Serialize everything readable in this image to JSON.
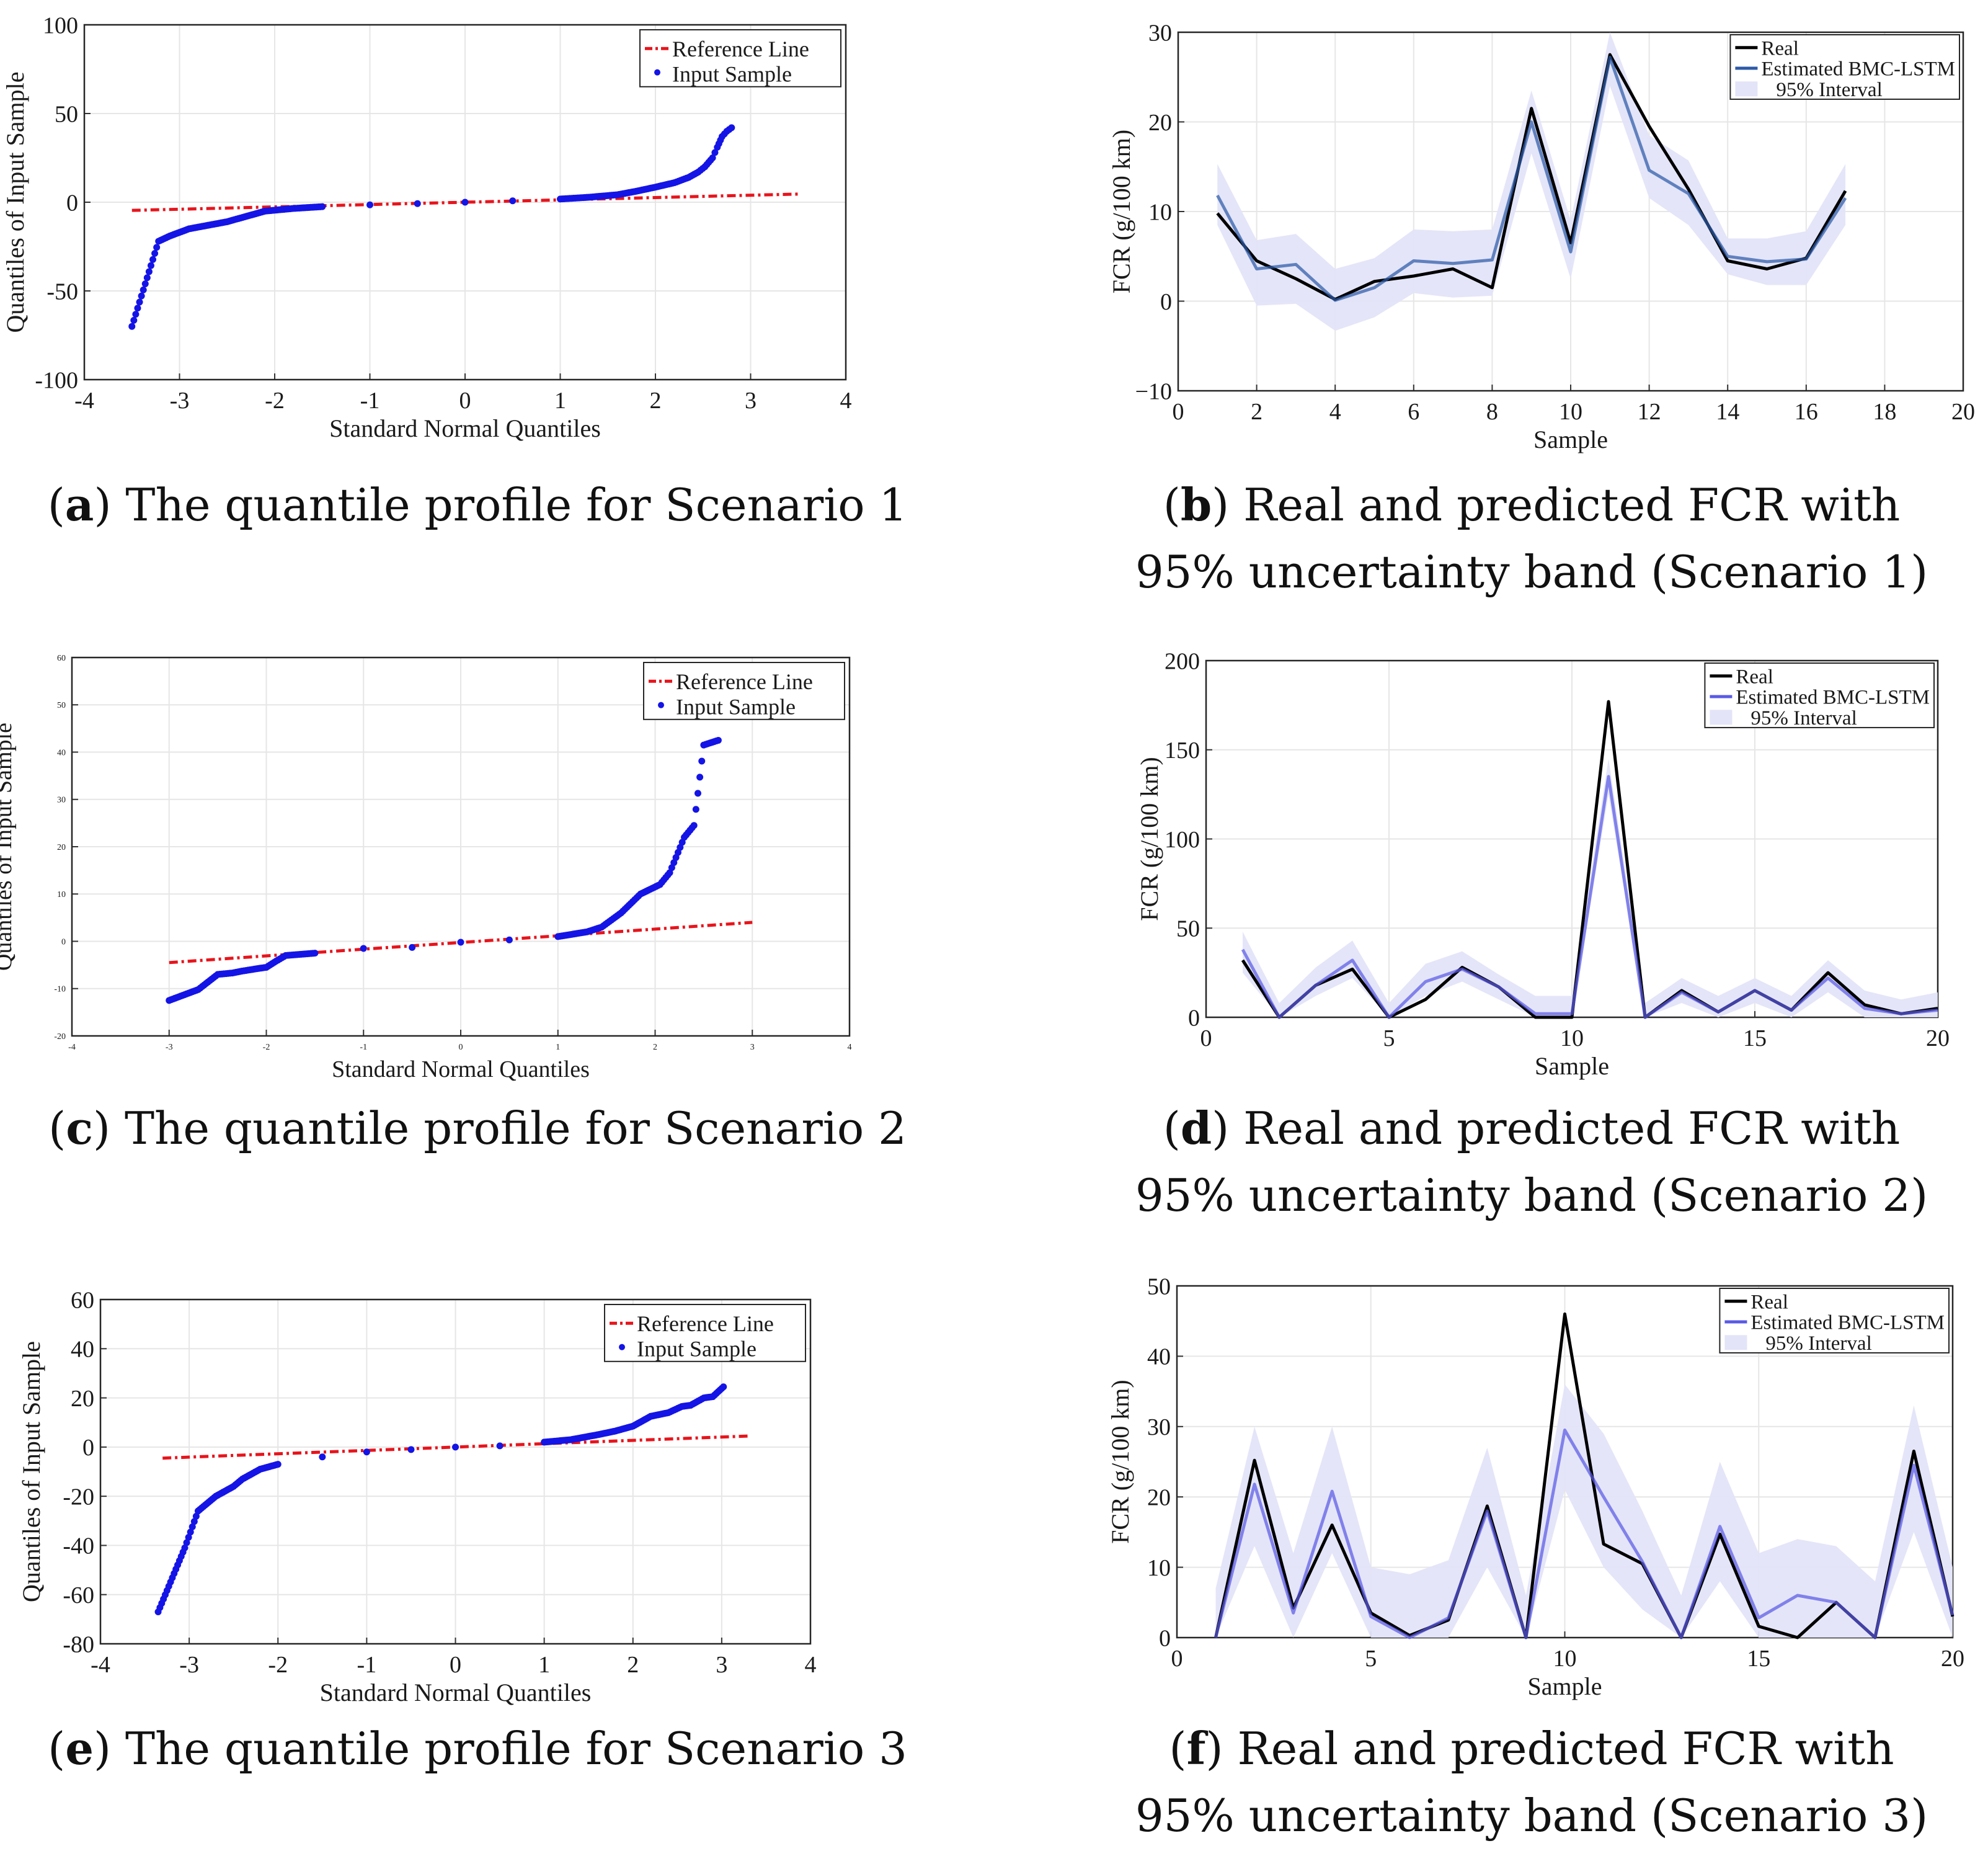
{
  "captions": {
    "a": {
      "letter": "a",
      "text": "The quantile profile for Scenario 1"
    },
    "b": {
      "letter": "b",
      "text": "Real and predicted FCR with 95% uncertainty band (Scenario 1)"
    },
    "c": {
      "letter": "c",
      "text": "The quantile profile for Scenario 2"
    },
    "d": {
      "letter": "d",
      "text": "Real and predicted FCR with 95% uncertainty band (Scenario 2)"
    },
    "e": {
      "letter": "e",
      "text": "The quantile profile for Scenario 3"
    },
    "f": {
      "letter": "f",
      "text": "Real and predicted FCR with 95% uncertainty band (Scenario 3)"
    }
  },
  "colors": {
    "reference": "#e8141c",
    "sample": "#1414e6",
    "real": "#000000",
    "estimated_b": "#2d5aa8",
    "estimated": "#5a5ae6",
    "band": "#e3e4f8",
    "grid": "#e6e6e6"
  },
  "chart_data": [
    {
      "id": "a",
      "type": "scatter",
      "xlabel": "Standard Normal Quantiles",
      "ylabel": "Quantiles of Input Sample",
      "xlim": [
        -4,
        4
      ],
      "ylim": [
        -100,
        100
      ],
      "xticks": [
        -4,
        -3,
        -2,
        -1,
        0,
        1,
        2,
        3,
        4
      ],
      "xtick_labels": [
        "-4",
        "-3",
        "-2",
        "-1",
        "0",
        "1",
        "2",
        "3",
        "4"
      ],
      "yticks": [
        -100,
        -50,
        0,
        50,
        100
      ],
      "ytick_labels": [
        "-100",
        "-50",
        "0",
        "50",
        "100"
      ],
      "legend": {
        "entries": [
          "Reference Line",
          "Input Sample"
        ],
        "position": "top-right"
      },
      "reference_line": {
        "x": [
          -3.5,
          3.5
        ],
        "y": [
          -4.6,
          4.6
        ]
      },
      "sample_curve": {
        "x": [
          -3.5,
          -3.22,
          -3.1,
          -3.0,
          -2.9,
          -2.8,
          -2.6,
          -2.5,
          -2.3,
          -2.1,
          -1.8,
          -1.5,
          -1.0,
          -0.5,
          0.0,
          0.5,
          1.0,
          1.3,
          1.6,
          1.8,
          2.0,
          2.2,
          2.35,
          2.45,
          2.52,
          2.6,
          2.65,
          2.7,
          2.75,
          2.8
        ],
        "y": [
          -70,
          -22,
          -19,
          -17,
          -15,
          -14,
          -12,
          -11,
          -8,
          -5,
          -3.5,
          -2.5,
          -1.5,
          -0.8,
          0,
          0.8,
          1.8,
          2.8,
          4.2,
          6.2,
          8.5,
          11,
          14,
          17,
          20,
          25,
          31,
          37,
          40,
          42
        ]
      }
    },
    {
      "id": "b",
      "type": "line",
      "xlabel": "Sample",
      "ylabel": "FCR (g/100 km)",
      "xlim": [
        0,
        20
      ],
      "ylim": [
        -10,
        30
      ],
      "xticks": [
        0,
        2,
        4,
        6,
        8,
        10,
        12,
        14,
        16,
        18,
        20
      ],
      "xtick_labels": [
        "0",
        "2",
        "4",
        "6",
        "8",
        "10",
        "12",
        "14",
        "16",
        "18",
        "20"
      ],
      "yticks": [
        -10,
        0,
        10,
        20,
        30
      ],
      "ytick_labels": [
        "−10",
        "0",
        "10",
        "20",
        "30"
      ],
      "legend": {
        "entries": [
          "Real",
          "Estimated BMC-LSTM",
          "95% Interval"
        ],
        "position": "top-right"
      },
      "x": [
        1,
        2,
        3,
        4,
        5,
        6,
        7,
        8,
        9,
        10,
        11,
        12,
        13,
        14,
        15,
        16,
        17
      ],
      "series": [
        {
          "name": "Real",
          "values": [
            9.8,
            4.5,
            2.5,
            0.2,
            2.2,
            2.8,
            3.6,
            1.5,
            21.5,
            6.5,
            27.5,
            19.5,
            12.5,
            4.5,
            3.6,
            4.8,
            12.3
          ]
        },
        {
          "name": "Estimated BMC-LSTM",
          "values": [
            11.8,
            3.6,
            4.1,
            0.1,
            1.5,
            4.5,
            4.2,
            4.6,
            20.0,
            5.5,
            27.2,
            14.6,
            12.0,
            5.0,
            4.4,
            4.7,
            11.5
          ]
        }
      ],
      "band": {
        "lower": [
          8.5,
          -0.5,
          -0.3,
          -3.3,
          -1.8,
          0.9,
          0.4,
          0.6,
          16.5,
          2.5,
          24.0,
          11.5,
          8.5,
          3.0,
          1.8,
          1.8,
          8.5
        ],
        "upper": [
          15.3,
          6.8,
          7.5,
          3.6,
          4.8,
          8.0,
          7.8,
          8.0,
          23.5,
          9.0,
          30.0,
          18.5,
          15.7,
          7.0,
          7.0,
          7.8,
          15.3
        ]
      }
    },
    {
      "id": "c",
      "type": "scatter",
      "xlabel": "Standard Normal Quantiles",
      "ylabel": "Quantiles of Input Sample",
      "xlim": [
        -4,
        4
      ],
      "ylim": [
        -20,
        60
      ],
      "xticks": [
        -4,
        -3,
        -2,
        -1,
        0,
        1,
        2,
        3,
        4
      ],
      "xtick_labels": [
        "-4",
        "-3",
        "-2",
        "-1",
        "0",
        "1",
        "2",
        "3",
        "4"
      ],
      "yticks": [
        -20,
        -10,
        0,
        10,
        20,
        30,
        40,
        50,
        60
      ],
      "ytick_labels": [
        "-20",
        "-10",
        "0",
        "10",
        "20",
        "30",
        "40",
        "50",
        "60"
      ],
      "legend": {
        "entries": [
          "Reference Line",
          "Input Sample"
        ],
        "position": "top-right"
      },
      "reference_line": {
        "x": [
          -3.0,
          3.0
        ],
        "y": [
          -4.5,
          4.0
        ]
      },
      "sample_curve": {
        "x": [
          -3.0,
          -2.7,
          -2.5,
          -2.35,
          -2.25,
          -2.1,
          -2.0,
          -1.9,
          -1.8,
          -1.5,
          -1.0,
          -0.5,
          0.0,
          0.5,
          1.0,
          1.3,
          1.45,
          1.55,
          1.65,
          1.75,
          1.85,
          1.95,
          2.05,
          2.15,
          2.3,
          2.4,
          2.5,
          2.65
        ],
        "y": [
          -12.5,
          -10.2,
          -7.0,
          -6.7,
          -6.3,
          -5.8,
          -5.5,
          -4.2,
          -3.0,
          -2.5,
          -1.5,
          -1.3,
          -0.2,
          0.3,
          1.0,
          2.0,
          3.0,
          4.5,
          6.0,
          8.0,
          10.0,
          11.0,
          12.0,
          14.5,
          22.0,
          24.5,
          41.5,
          42.5
        ]
      }
    },
    {
      "id": "d",
      "type": "line",
      "xlabel": "Sample",
      "ylabel": "FCR (g/100 km)",
      "xlim": [
        0,
        20
      ],
      "ylim": [
        0,
        200
      ],
      "xticks": [
        0,
        5,
        10,
        15,
        20
      ],
      "xtick_labels": [
        "0",
        "5",
        "10",
        "15",
        "20"
      ],
      "yticks": [
        0,
        50,
        100,
        150,
        200
      ],
      "ytick_labels": [
        "0",
        "50",
        "100",
        "150",
        "200"
      ],
      "legend": {
        "entries": [
          "Real",
          "Estimated BMC-LSTM",
          "95% Interval"
        ],
        "position": "top-right"
      },
      "x": [
        1,
        2,
        3,
        4,
        5,
        6,
        7,
        8,
        9,
        10,
        11,
        12,
        13,
        14,
        15,
        16,
        17,
        18,
        19,
        20
      ],
      "series": [
        {
          "name": "Real",
          "values": [
            32,
            0,
            18,
            27,
            0,
            10,
            28,
            17,
            0,
            0,
            177,
            0,
            15,
            3,
            15,
            4,
            25,
            7,
            2,
            5
          ]
        },
        {
          "name": "Estimated BMC-LSTM",
          "values": [
            38,
            0,
            18,
            32,
            0,
            20,
            27,
            17,
            2,
            2,
            135,
            0,
            14,
            3,
            15,
            4,
            22,
            5,
            2,
            4
          ]
        }
      ],
      "band": {
        "lower": [
          25,
          -3,
          12,
          22,
          -3,
          12,
          20,
          10,
          -2,
          -2,
          125,
          -3,
          8,
          -2,
          8,
          -2,
          14,
          -2,
          -2,
          -2
        ],
        "upper": [
          48,
          8,
          28,
          43,
          8,
          30,
          37,
          24,
          12,
          12,
          145,
          8,
          22,
          12,
          22,
          12,
          32,
          15,
          10,
          14
        ]
      }
    },
    {
      "id": "e",
      "type": "scatter",
      "xlabel": "Standard Normal Quantiles",
      "ylabel": "Quantiles of Input Sample",
      "xlim": [
        -4,
        4
      ],
      "ylim": [
        -80,
        60
      ],
      "xticks": [
        -4,
        -3,
        -2,
        -1,
        0,
        1,
        2,
        3,
        4
      ],
      "xtick_labels": [
        "-4",
        "-3",
        "-2",
        "-1",
        "0",
        "1",
        "2",
        "3",
        "4"
      ],
      "yticks": [
        -80,
        -60,
        -40,
        -20,
        0,
        20,
        40,
        60
      ],
      "ytick_labels": [
        "-80",
        "-60",
        "-40",
        "-20",
        "0",
        "20",
        "40",
        "60"
      ],
      "legend": {
        "entries": [
          "Reference Line",
          "Input Sample"
        ],
        "position": "top-right"
      },
      "reference_line": {
        "x": [
          -3.3,
          3.3
        ],
        "y": [
          -4.5,
          4.5
        ]
      },
      "sample_curve": {
        "x": [
          -3.35,
          -3.05,
          -2.9,
          -2.8,
          -2.7,
          -2.6,
          -2.5,
          -2.4,
          -2.3,
          -2.2,
          -2.0,
          -1.5,
          -1.0,
          -0.5,
          0.0,
          0.5,
          1.0,
          1.3,
          1.6,
          1.8,
          2.0,
          2.2,
          2.4,
          2.55,
          2.65,
          2.8,
          2.9,
          3.02
        ],
        "y": [
          -67,
          -41,
          -26,
          -23,
          -20,
          -18,
          -16,
          -13,
          -11,
          -9,
          -7,
          -4,
          -2,
          -1,
          0,
          0.5,
          2,
          3,
          5,
          6.5,
          8.5,
          12.5,
          14,
          16.5,
          17,
          20,
          20.5,
          24.5
        ]
      }
    },
    {
      "id": "f",
      "type": "line",
      "xlabel": "Sample",
      "ylabel": "FCR (g/100 km)",
      "xlim": [
        0,
        20
      ],
      "ylim": [
        0,
        50
      ],
      "xticks": [
        0,
        5,
        10,
        15,
        20
      ],
      "xtick_labels": [
        "0",
        "5",
        "10",
        "15",
        "20"
      ],
      "yticks": [
        0,
        10,
        20,
        30,
        40,
        50
      ],
      "ytick_labels": [
        "0",
        "10",
        "20",
        "30",
        "40",
        "50"
      ],
      "legend": {
        "entries": [
          "Real",
          "Estimated BMC-LSTM",
          "95% Interval"
        ],
        "position": "top-right"
      },
      "x": [
        1,
        2,
        3,
        4,
        5,
        6,
        7,
        8,
        9,
        10,
        11,
        12,
        13,
        14,
        15,
        16,
        17,
        18,
        19,
        20
      ],
      "series": [
        {
          "name": "Real",
          "values": [
            0,
            25.2,
            4.2,
            16.0,
            3.5,
            0.3,
            2.5,
            18.7,
            0,
            46.0,
            13.3,
            10.5,
            0,
            14.7,
            1.6,
            0,
            5.0,
            0,
            26.5,
            3.0
          ]
        },
        {
          "name": "Estimated BMC-LSTM",
          "values": [
            0,
            21.8,
            3.5,
            20.8,
            3.0,
            0,
            2.8,
            18.0,
            0,
            29.5,
            20.0,
            10.8,
            0,
            15.8,
            2.8,
            6.0,
            5.0,
            0,
            24.5,
            3.2
          ]
        }
      ],
      "band": {
        "lower": [
          0,
          13,
          0,
          12,
          0,
          0,
          0,
          10,
          0,
          21,
          10,
          4,
          0,
          8,
          0,
          0,
          0,
          0,
          15,
          0
        ],
        "upper": [
          7,
          30,
          12,
          30,
          10,
          9,
          11,
          27,
          6,
          36,
          29,
          18,
          6,
          25,
          12,
          14,
          13,
          8,
          33,
          10
        ]
      }
    }
  ]
}
